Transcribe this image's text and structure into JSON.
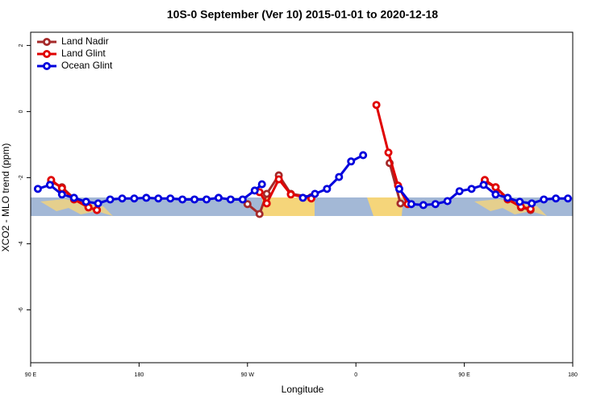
{
  "chart_data": {
    "type": "line",
    "title": "10S-0 September (Ver 10)   2015-01-01 to 2020-12-18",
    "x_label": "Longitude",
    "y_label": "XCO2 - MLO trend (ppm)",
    "xlim": [
      90,
      540
    ],
    "xticks": [
      {
        "value": 90,
        "label": "90 E"
      },
      {
        "value": 180,
        "label": "180"
      },
      {
        "value": 270,
        "label": "90 W"
      },
      {
        "value": 360,
        "label": "0"
      },
      {
        "value": 450,
        "label": "90 E"
      },
      {
        "value": 540,
        "label": "180"
      }
    ],
    "ylim": [
      -7.6,
      2.4
    ],
    "yticks": [
      2,
      0,
      -2,
      -4,
      -6
    ],
    "legend": "top-left",
    "series": [
      {
        "name": "Land Nadir",
        "color": "#a52a2a",
        "x": [
          107,
          116,
          126,
          138,
          145,
          null,
          270,
          280,
          286,
          296,
          306,
          323,
          null,
          388,
          397,
          null,
          467,
          476,
          486,
          497,
          505
        ],
        "values": [
          -2.12,
          -2.29,
          -2.63,
          -2.9,
          -2.98,
          null,
          -2.8,
          -3.1,
          -2.49,
          -1.93,
          -2.49,
          -2.59,
          null,
          -1.56,
          -2.78,
          null,
          -2.12,
          -2.29,
          -2.63,
          -2.9,
          -2.98
        ]
      },
      {
        "name": "Land Glint",
        "color": "#e00000",
        "x": [
          107,
          116,
          126,
          138,
          145,
          null,
          280,
          286,
          296,
          306,
          323,
          null,
          377,
          387,
          395,
          403,
          null,
          467,
          476,
          486,
          497,
          505
        ],
        "values": [
          -2.07,
          -2.32,
          -2.66,
          -2.9,
          -2.98,
          null,
          -2.44,
          -2.78,
          -2.05,
          -2.51,
          -2.63,
          null,
          0.2,
          -1.24,
          -2.24,
          -2.8,
          null,
          -2.07,
          -2.29,
          -2.66,
          -2.88,
          -2.95
        ]
      },
      {
        "name": "Ocean Glint",
        "color": "#0000dd",
        "x": [
          96,
          106,
          116,
          126,
          136,
          146,
          156,
          166,
          176,
          186,
          196,
          206,
          216,
          226,
          236,
          246,
          256,
          266,
          276,
          282,
          null,
          316,
          326,
          336,
          346,
          356,
          366,
          null,
          396,
          406,
          416,
          426,
          436,
          446,
          456,
          466,
          476,
          486,
          496,
          506,
          516,
          526,
          536
        ],
        "values": [
          -2.34,
          -2.22,
          -2.51,
          -2.61,
          -2.73,
          -2.78,
          -2.66,
          -2.63,
          -2.63,
          -2.61,
          -2.63,
          -2.63,
          -2.66,
          -2.66,
          -2.66,
          -2.61,
          -2.66,
          -2.66,
          -2.39,
          -2.2,
          null,
          -2.61,
          -2.49,
          -2.34,
          -1.98,
          -1.51,
          -1.32,
          null,
          -2.34,
          -2.8,
          -2.83,
          -2.8,
          -2.71,
          -2.41,
          -2.34,
          -2.22,
          -2.51,
          -2.61,
          -2.73,
          -2.78,
          -2.66,
          -2.63,
          -2.63
        ]
      }
    ]
  }
}
